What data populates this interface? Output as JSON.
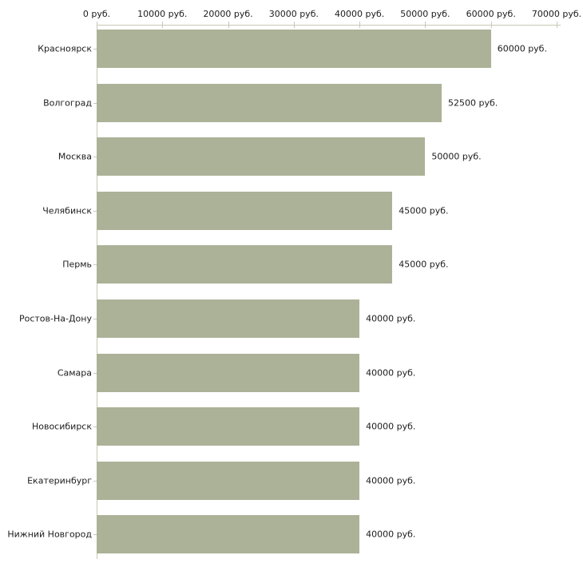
{
  "chart_data": {
    "type": "bar",
    "orientation": "horizontal",
    "title": "",
    "xlabel": "",
    "ylabel": "",
    "xlim": [
      0,
      70000
    ],
    "grid": false,
    "legend": "none",
    "categories": [
      "Красноярск",
      "Волгоград",
      "Москва",
      "Челябинск",
      "Пермь",
      "Ростов-На-Дону",
      "Самара",
      "Новосибирск",
      "Екатеринбург",
      "Нижний Новгород"
    ],
    "values": [
      60000,
      52500,
      50000,
      45000,
      45000,
      40000,
      40000,
      40000,
      40000,
      40000
    ],
    "value_labels": [
      "60000 руб.",
      "52500 руб.",
      "50000 руб.",
      "45000 руб.",
      "45000 руб.",
      "40000 руб.",
      "40000 руб.",
      "40000 руб.",
      "40000 руб.",
      "40000 руб."
    ],
    "x_ticks": [
      0,
      10000,
      20000,
      30000,
      40000,
      50000,
      60000,
      70000
    ],
    "x_tick_labels": [
      "0 руб.",
      "10000 руб.",
      "20000 руб.",
      "30000 руб.",
      "40000 руб.",
      "50000 руб.",
      "60000 руб.",
      "70000 руб."
    ],
    "colors": {
      "bar": "#ABB297",
      "axis": "#C8C8B4",
      "text": "#1C1C1C",
      "background": "#FFFFFF"
    }
  }
}
